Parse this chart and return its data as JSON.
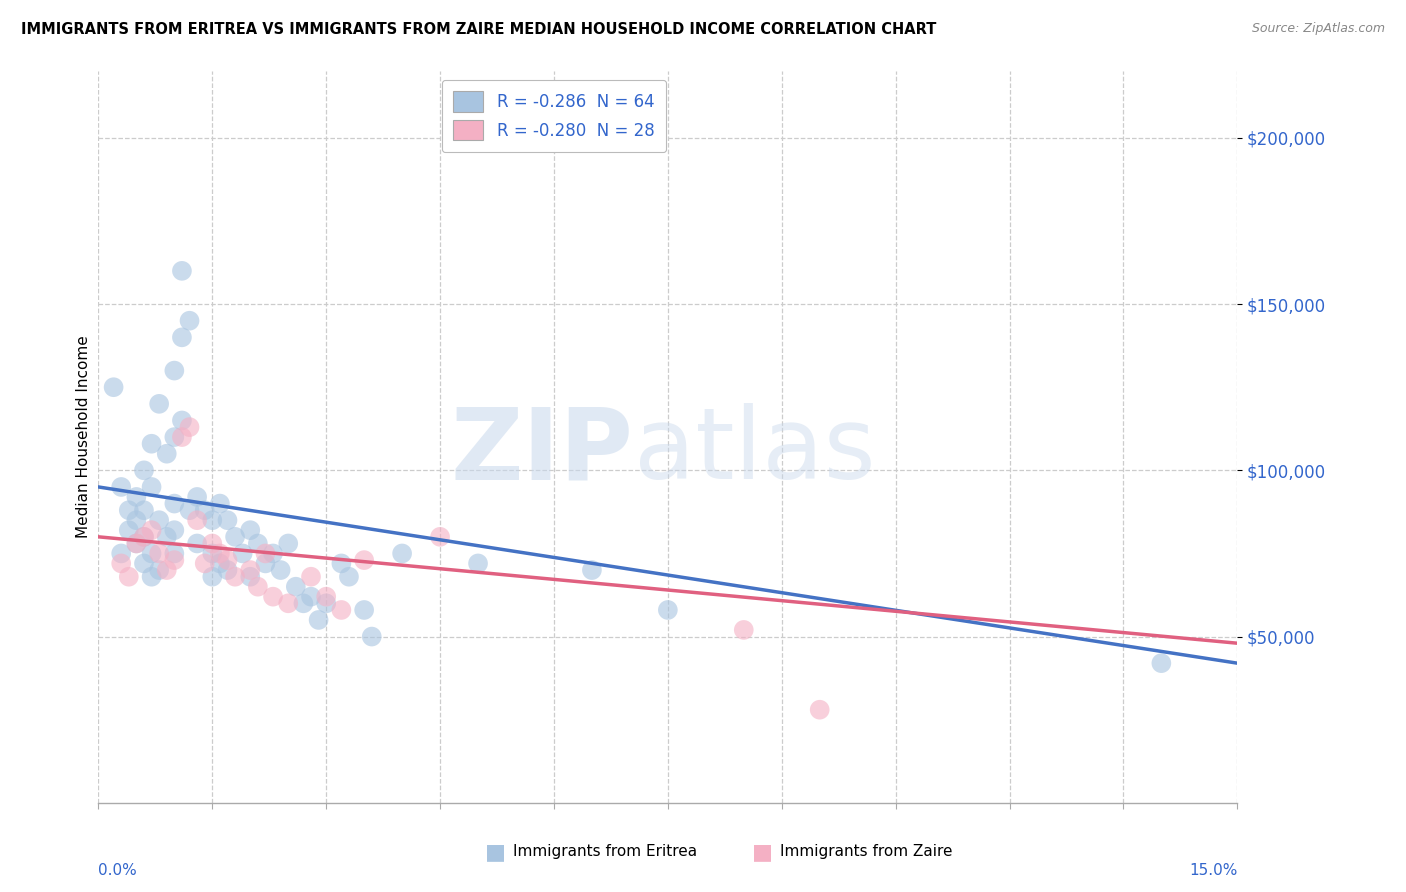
{
  "title": "IMMIGRANTS FROM ERITREA VS IMMIGRANTS FROM ZAIRE MEDIAN HOUSEHOLD INCOME CORRELATION CHART",
  "source": "Source: ZipAtlas.com",
  "ylabel": "Median Household Income",
  "legend_eritrea": "R = -0.286  N = 64",
  "legend_zaire": "R = -0.280  N = 28",
  "legend_label_eritrea": "Immigrants from Eritrea",
  "legend_label_zaire": "Immigrants from Zaire",
  "color_eritrea": "#a8c4e0",
  "color_zaire": "#f4b0c4",
  "line_color_eritrea": "#4472c4",
  "line_color_zaire": "#e06080",
  "watermark_zip": "ZIP",
  "watermark_atlas": "atlas",
  "xmin": 0.0,
  "xmax": 15.0,
  "ymin": 0,
  "ymax": 220000,
  "yticks": [
    50000,
    100000,
    150000,
    200000
  ],
  "ytick_labels": [
    "$50,000",
    "$100,000",
    "$150,000",
    "$200,000"
  ],
  "eritrea_x": [
    0.2,
    0.3,
    0.3,
    0.4,
    0.4,
    0.5,
    0.5,
    0.5,
    0.6,
    0.6,
    0.6,
    0.6,
    0.7,
    0.7,
    0.7,
    0.7,
    0.8,
    0.8,
    0.8,
    0.9,
    0.9,
    1.0,
    1.0,
    1.0,
    1.0,
    1.0,
    1.1,
    1.1,
    1.1,
    1.2,
    1.2,
    1.3,
    1.3,
    1.4,
    1.5,
    1.5,
    1.5,
    1.6,
    1.6,
    1.7,
    1.7,
    1.8,
    1.9,
    2.0,
    2.0,
    2.1,
    2.2,
    2.3,
    2.4,
    2.5,
    2.6,
    2.7,
    2.8,
    2.9,
    3.0,
    3.2,
    3.3,
    3.5,
    3.6,
    4.0,
    5.0,
    6.5,
    7.5,
    14.0
  ],
  "eritrea_y": [
    125000,
    95000,
    75000,
    88000,
    82000,
    92000,
    78000,
    85000,
    100000,
    88000,
    80000,
    72000,
    108000,
    95000,
    75000,
    68000,
    120000,
    85000,
    70000,
    105000,
    80000,
    130000,
    110000,
    90000,
    82000,
    75000,
    160000,
    140000,
    115000,
    145000,
    88000,
    92000,
    78000,
    88000,
    85000,
    75000,
    68000,
    90000,
    72000,
    85000,
    70000,
    80000,
    75000,
    82000,
    68000,
    78000,
    72000,
    75000,
    70000,
    78000,
    65000,
    60000,
    62000,
    55000,
    60000,
    72000,
    68000,
    58000,
    50000,
    75000,
    72000,
    70000,
    58000,
    42000
  ],
  "zaire_x": [
    0.3,
    0.4,
    0.5,
    0.6,
    0.7,
    0.8,
    0.9,
    1.0,
    1.1,
    1.2,
    1.3,
    1.4,
    1.5,
    1.6,
    1.7,
    1.8,
    2.0,
    2.1,
    2.2,
    2.3,
    2.5,
    2.8,
    3.0,
    3.2,
    3.5,
    4.5,
    8.5,
    9.5
  ],
  "zaire_y": [
    72000,
    68000,
    78000,
    80000,
    82000,
    75000,
    70000,
    73000,
    110000,
    113000,
    85000,
    72000,
    78000,
    75000,
    73000,
    68000,
    70000,
    65000,
    75000,
    62000,
    60000,
    68000,
    62000,
    58000,
    73000,
    80000,
    52000,
    28000
  ],
  "line_eritrea_x0": 0,
  "line_eritrea_y0": 95000,
  "line_eritrea_x1": 15,
  "line_eritrea_y1": 42000,
  "line_zaire_x0": 0,
  "line_zaire_y0": 80000,
  "line_zaire_x1": 15,
  "line_zaire_y1": 48000
}
